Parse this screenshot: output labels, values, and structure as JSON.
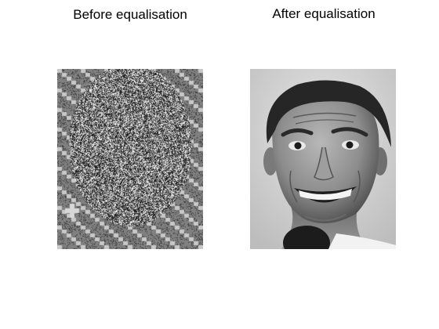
{
  "panels": [
    {
      "title": "Before equalisation",
      "image": "noisy-equalised-face-photo"
    },
    {
      "title": "After equalisation",
      "image": "grayscale-smiling-man-portrait"
    }
  ]
}
